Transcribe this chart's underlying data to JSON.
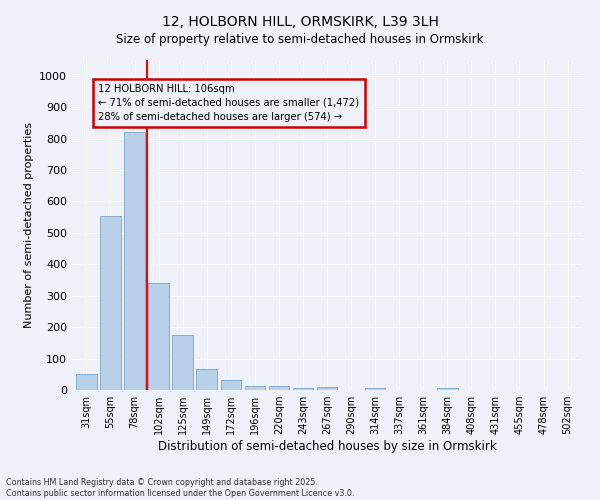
{
  "title_line1": "12, HOLBORN HILL, ORMSKIRK, L39 3LH",
  "title_line2": "Size of property relative to semi-detached houses in Ormskirk",
  "xlabel": "Distribution of semi-detached houses by size in Ormskirk",
  "ylabel": "Number of semi-detached properties",
  "categories": [
    "31sqm",
    "55sqm",
    "78sqm",
    "102sqm",
    "125sqm",
    "149sqm",
    "172sqm",
    "196sqm",
    "220sqm",
    "243sqm",
    "267sqm",
    "290sqm",
    "314sqm",
    "337sqm",
    "361sqm",
    "384sqm",
    "408sqm",
    "431sqm",
    "455sqm",
    "478sqm",
    "502sqm"
  ],
  "values": [
    50,
    553,
    820,
    340,
    175,
    68,
    33,
    14,
    12,
    5,
    10,
    0,
    7,
    0,
    0,
    7,
    0,
    0,
    0,
    0,
    0
  ],
  "bar_color": "#b8d0e8",
  "bar_edge_color": "#6898c8",
  "property_line_x": 3.0,
  "annotation_title": "12 HOLBORN HILL: 106sqm",
  "annotation_line1": "← 71% of semi-detached houses are smaller (1,472)",
  "annotation_line2": "28% of semi-detached houses are larger (574) →",
  "annotation_box_color": "#cc0000",
  "ylim": [
    0,
    1050
  ],
  "yticks": [
    0,
    100,
    200,
    300,
    400,
    500,
    600,
    700,
    800,
    900,
    1000
  ],
  "footer_line1": "Contains HM Land Registry data © Crown copyright and database right 2025.",
  "footer_line2": "Contains public sector information licensed under the Open Government Licence v3.0.",
  "bg_color": "#eef2f8",
  "grid_color": "#ffffff"
}
